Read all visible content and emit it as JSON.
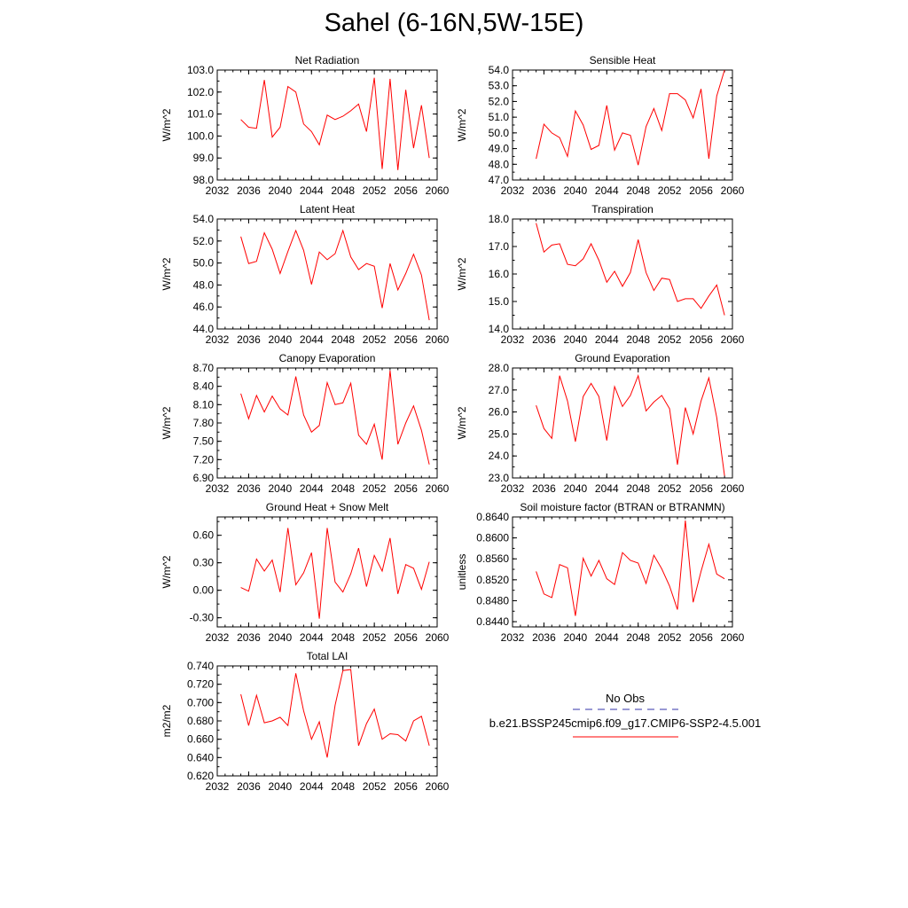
{
  "title": "Sahel (6-16N,5W-15E)",
  "legend": {
    "items": [
      {
        "label": "No Obs",
        "color": "#3333aa",
        "dash": "dashed"
      },
      {
        "label": "b.e21.BSSP245cmip6.f09_g17.CMIP6-SSP2-4.5.001",
        "color": "#ff0000",
        "dash": "solid"
      }
    ]
  },
  "chart_data": [
    {
      "type": "line",
      "title": "Net Radiation",
      "ylabel": "W/m^2",
      "ylim": [
        98.0,
        103.0
      ],
      "yticks": [
        "98.0",
        "99.0",
        "100.0",
        "101.0",
        "102.0",
        "103.0"
      ],
      "xlim": [
        2032,
        2060
      ],
      "xticks": [
        "2032",
        "2036",
        "2040",
        "2044",
        "2048",
        "2052",
        "2056",
        "2060"
      ],
      "x": [
        2035,
        2036,
        2037,
        2038,
        2039,
        2040,
        2041,
        2042,
        2043,
        2044,
        2045,
        2046,
        2047,
        2048,
        2049,
        2050,
        2051,
        2052,
        2053,
        2054,
        2055,
        2056,
        2057,
        2058,
        2059
      ],
      "series": [
        {
          "values": [
            100.75,
            100.4,
            100.35,
            102.55,
            99.95,
            100.4,
            102.25,
            102.0,
            100.55,
            100.2,
            99.6,
            100.95,
            100.75,
            100.9,
            101.15,
            101.45,
            100.2,
            102.65,
            98.5,
            102.6,
            98.45,
            102.1,
            99.45,
            101.4,
            99.0
          ]
        }
      ]
    },
    {
      "type": "line",
      "title": "Sensible Heat",
      "ylabel": "W/m^2",
      "ylim": [
        47.0,
        54.0
      ],
      "yticks": [
        "47.0",
        "48.0",
        "49.0",
        "50.0",
        "51.0",
        "52.0",
        "53.0",
        "54.0"
      ],
      "xlim": [
        2032,
        2060
      ],
      "xticks": [
        "2032",
        "2036",
        "2040",
        "2044",
        "2048",
        "2052",
        "2056",
        "2060"
      ],
      "x": [
        2035,
        2036,
        2037,
        2038,
        2039,
        2040,
        2041,
        2042,
        2043,
        2044,
        2045,
        2046,
        2047,
        2048,
        2049,
        2050,
        2051,
        2052,
        2053,
        2054,
        2055,
        2056,
        2057,
        2058,
        2059
      ],
      "series": [
        {
          "values": [
            48.35,
            50.55,
            50.0,
            49.7,
            48.5,
            51.4,
            50.5,
            48.95,
            49.2,
            51.75,
            48.9,
            50.0,
            49.85,
            47.95,
            50.4,
            51.55,
            50.15,
            52.5,
            52.5,
            52.1,
            50.95,
            52.8,
            48.35,
            52.35,
            54.0
          ]
        }
      ]
    },
    {
      "type": "line",
      "title": "Latent Heat",
      "ylabel": "W/m^2",
      "ylim": [
        44.0,
        54.0
      ],
      "yticks": [
        "44.0",
        "46.0",
        "48.0",
        "50.0",
        "52.0",
        "54.0"
      ],
      "xlim": [
        2032,
        2060
      ],
      "xticks": [
        "2032",
        "2036",
        "2040",
        "2044",
        "2048",
        "2052",
        "2056",
        "2060"
      ],
      "x": [
        2035,
        2036,
        2037,
        2038,
        2039,
        2040,
        2041,
        2042,
        2043,
        2044,
        2045,
        2046,
        2047,
        2048,
        2049,
        2050,
        2051,
        2052,
        2053,
        2054,
        2055,
        2056,
        2057,
        2058,
        2059
      ],
      "series": [
        {
          "values": [
            52.4,
            49.95,
            50.15,
            52.75,
            51.25,
            49.05,
            51.05,
            52.95,
            51.15,
            48.05,
            51.0,
            50.3,
            50.85,
            52.95,
            50.55,
            49.4,
            49.95,
            49.7,
            45.9,
            49.95,
            47.55,
            49.05,
            50.8,
            48.9,
            44.8
          ]
        }
      ]
    },
    {
      "type": "line",
      "title": "Transpiration",
      "ylabel": "W/m^2",
      "ylim": [
        14.0,
        18.0
      ],
      "yticks": [
        "14.0",
        "15.0",
        "16.0",
        "17.0",
        "18.0"
      ],
      "xlim": [
        2032,
        2060
      ],
      "xticks": [
        "2032",
        "2036",
        "2040",
        "2044",
        "2048",
        "2052",
        "2056",
        "2060"
      ],
      "x": [
        2035,
        2036,
        2037,
        2038,
        2039,
        2040,
        2041,
        2042,
        2043,
        2044,
        2045,
        2046,
        2047,
        2048,
        2049,
        2050,
        2051,
        2052,
        2053,
        2054,
        2055,
        2056,
        2057,
        2058,
        2059
      ],
      "series": [
        {
          "values": [
            17.85,
            16.8,
            17.05,
            17.1,
            16.35,
            16.3,
            16.55,
            17.1,
            16.5,
            15.7,
            16.1,
            15.55,
            16.05,
            17.25,
            16.05,
            15.4,
            15.85,
            15.8,
            15.0,
            15.1,
            15.1,
            14.75,
            15.2,
            15.6,
            14.5
          ]
        }
      ]
    },
    {
      "type": "line",
      "title": "Canopy Evaporation",
      "ylabel": "W/m^2",
      "ylim": [
        6.9,
        8.7
      ],
      "yticks": [
        "6.90",
        "7.20",
        "7.50",
        "7.80",
        "8.10",
        "8.40",
        "8.70"
      ],
      "xlim": [
        2032,
        2060
      ],
      "xticks": [
        "2032",
        "2036",
        "2040",
        "2044",
        "2048",
        "2052",
        "2056",
        "2060"
      ],
      "x": [
        2035,
        2036,
        2037,
        2038,
        2039,
        2040,
        2041,
        2042,
        2043,
        2044,
        2045,
        2046,
        2047,
        2048,
        2049,
        2050,
        2051,
        2052,
        2053,
        2054,
        2055,
        2056,
        2057,
        2058,
        2059
      ],
      "series": [
        {
          "values": [
            8.28,
            7.87,
            8.25,
            7.98,
            8.24,
            8.03,
            7.93,
            8.56,
            7.93,
            7.65,
            7.76,
            8.46,
            8.1,
            8.13,
            8.45,
            7.6,
            7.45,
            7.78,
            7.2,
            8.66,
            7.45,
            7.8,
            8.08,
            7.68,
            7.12
          ]
        }
      ]
    },
    {
      "type": "line",
      "title": "Ground Evaporation",
      "ylabel": "W/m^2",
      "ylim": [
        23.0,
        28.0
      ],
      "yticks": [
        "23.0",
        "24.0",
        "25.0",
        "26.0",
        "27.0",
        "28.0"
      ],
      "xlim": [
        2032,
        2060
      ],
      "xticks": [
        "2032",
        "2036",
        "2040",
        "2044",
        "2048",
        "2052",
        "2056",
        "2060"
      ],
      "x": [
        2035,
        2036,
        2037,
        2038,
        2039,
        2040,
        2041,
        2042,
        2043,
        2044,
        2045,
        2046,
        2047,
        2048,
        2049,
        2050,
        2051,
        2052,
        2053,
        2054,
        2055,
        2056,
        2057,
        2058,
        2059
      ],
      "series": [
        {
          "values": [
            26.3,
            25.25,
            24.8,
            27.65,
            26.5,
            24.65,
            26.7,
            27.3,
            26.7,
            24.7,
            27.15,
            26.25,
            26.75,
            27.65,
            26.05,
            26.45,
            26.75,
            26.15,
            23.6,
            26.2,
            25.0,
            26.5,
            27.55,
            25.75,
            23.1
          ]
        }
      ]
    },
    {
      "type": "line",
      "title": "Ground Heat + Snow Melt",
      "ylabel": "W/m^2",
      "ylim": [
        -0.4,
        0.8
      ],
      "yticks": [
        "-0.30",
        "0.00",
        "0.30",
        "0.60"
      ],
      "ytickvals": [
        -0.3,
        0.0,
        0.3,
        0.6
      ],
      "xlim": [
        2032,
        2060
      ],
      "xticks": [
        "2032",
        "2036",
        "2040",
        "2044",
        "2048",
        "2052",
        "2056",
        "2060"
      ],
      "x": [
        2035,
        2036,
        2037,
        2038,
        2039,
        2040,
        2041,
        2042,
        2043,
        2044,
        2045,
        2046,
        2047,
        2048,
        2049,
        2050,
        2051,
        2052,
        2053,
        2054,
        2055,
        2056,
        2057,
        2058,
        2059
      ],
      "series": [
        {
          "values": [
            0.03,
            -0.01,
            0.34,
            0.21,
            0.33,
            -0.02,
            0.68,
            0.06,
            0.19,
            0.41,
            -0.31,
            0.68,
            0.09,
            -0.02,
            0.18,
            0.46,
            0.04,
            0.38,
            0.21,
            0.57,
            -0.04,
            0.28,
            0.24,
            0.01,
            0.31
          ]
        }
      ]
    },
    {
      "type": "line",
      "title": "Soil moisture factor (BTRAN or BTRANMN)",
      "ylabel": "unitless",
      "ylim": [
        0.843,
        0.864
      ],
      "yticks": [
        "0.8440",
        "0.8480",
        "0.8520",
        "0.8560",
        "0.8600",
        "0.8640"
      ],
      "ytickvals": [
        0.844,
        0.848,
        0.852,
        0.856,
        0.86,
        0.864
      ],
      "xlim": [
        2032,
        2060
      ],
      "xticks": [
        "2032",
        "2036",
        "2040",
        "2044",
        "2048",
        "2052",
        "2056",
        "2060"
      ],
      "x": [
        2035,
        2036,
        2037,
        2038,
        2039,
        2040,
        2041,
        2042,
        2043,
        2044,
        2045,
        2046,
        2047,
        2048,
        2049,
        2050,
        2051,
        2052,
        2053,
        2054,
        2055,
        2056,
        2057,
        2058,
        2059
      ],
      "series": [
        {
          "values": [
            0.8536,
            0.8493,
            0.8486,
            0.8549,
            0.8543,
            0.8451,
            0.8561,
            0.8527,
            0.8557,
            0.8522,
            0.8511,
            0.8572,
            0.8557,
            0.8552,
            0.8513,
            0.8567,
            0.8541,
            0.8508,
            0.8463,
            0.8633,
            0.8477,
            0.8536,
            0.8588,
            0.8531,
            0.8522
          ]
        }
      ]
    },
    {
      "type": "line",
      "title": "Total LAI",
      "ylabel": "m2/m2",
      "ylim": [
        0.62,
        0.74
      ],
      "yticks": [
        "0.620",
        "0.640",
        "0.660",
        "0.680",
        "0.700",
        "0.720",
        "0.740"
      ],
      "xlim": [
        2032,
        2060
      ],
      "xticks": [
        "2032",
        "2036",
        "2040",
        "2044",
        "2048",
        "2052",
        "2056",
        "2060"
      ],
      "x": [
        2035,
        2036,
        2037,
        2038,
        2039,
        2040,
        2041,
        2042,
        2043,
        2044,
        2045,
        2046,
        2047,
        2048,
        2049,
        2050,
        2051,
        2052,
        2053,
        2054,
        2055,
        2056,
        2057,
        2058,
        2059
      ],
      "series": [
        {
          "values": [
            0.709,
            0.675,
            0.708,
            0.678,
            0.68,
            0.684,
            0.675,
            0.732,
            0.691,
            0.66,
            0.679,
            0.64,
            0.697,
            0.735,
            0.736,
            0.653,
            0.677,
            0.693,
            0.66,
            0.666,
            0.665,
            0.658,
            0.68,
            0.685,
            0.653
          ]
        }
      ]
    }
  ]
}
